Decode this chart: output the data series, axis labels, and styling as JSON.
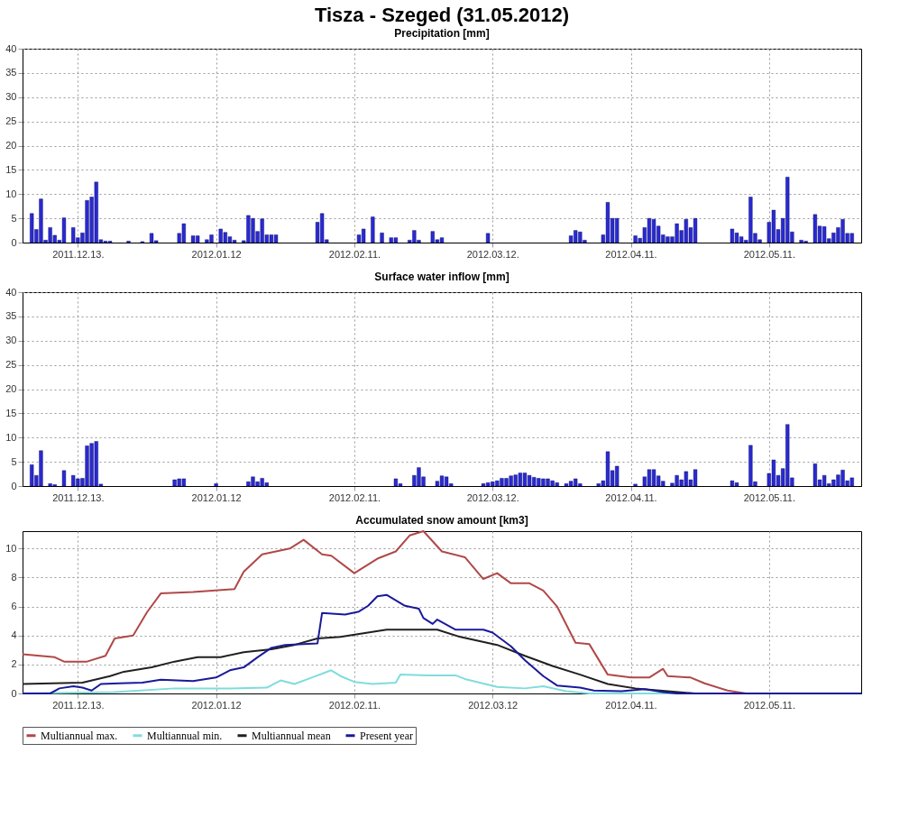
{
  "chart_data": [
    {
      "type": "bar",
      "title": "Tisza - Szeged (31.05.2012)",
      "subtitle": "Precipitation [mm]",
      "color": "#2a2ad0",
      "grid": true,
      "xlim": [
        "2011-12-01",
        "2012-05-31"
      ],
      "ylim": [
        0,
        40
      ],
      "yticks": [
        0,
        5,
        10,
        15,
        20,
        25,
        30,
        35,
        40
      ],
      "xticks": [
        {
          "value": "2011-12-13",
          "label": "2011.12.13."
        },
        {
          "value": "2012-01-12",
          "label": "2012.01.12"
        },
        {
          "value": "2012-02-11",
          "label": "2012.02.11."
        },
        {
          "value": "2012-03-12",
          "label": "2012.03.12."
        },
        {
          "value": "2012-04-11",
          "label": "2012.04.11."
        },
        {
          "value": "2012-05-11",
          "label": "2012.05.11."
        }
      ],
      "x": [
        "2011-12-03",
        "2011-12-04",
        "2011-12-05",
        "2011-12-06",
        "2011-12-07",
        "2011-12-08",
        "2011-12-09",
        "2011-12-10",
        "2011-12-12",
        "2011-12-13",
        "2011-12-14",
        "2011-12-15",
        "2011-12-16",
        "2011-12-17",
        "2011-12-18",
        "2011-12-19",
        "2011-12-20",
        "2011-12-24",
        "2011-12-27",
        "2011-12-29",
        "2011-12-30",
        "2012-01-04",
        "2012-01-05",
        "2012-01-07",
        "2012-01-08",
        "2012-01-10",
        "2012-01-11",
        "2012-01-13",
        "2012-01-14",
        "2012-01-15",
        "2012-01-16",
        "2012-01-18",
        "2012-01-19",
        "2012-01-20",
        "2012-01-21",
        "2012-01-22",
        "2012-01-23",
        "2012-01-24",
        "2012-01-25",
        "2012-02-03",
        "2012-02-04",
        "2012-02-05",
        "2012-02-12",
        "2012-02-13",
        "2012-02-15",
        "2012-02-17",
        "2012-02-19",
        "2012-02-20",
        "2012-02-23",
        "2012-02-24",
        "2012-02-25",
        "2012-02-28",
        "2012-02-29",
        "2012-03-01",
        "2012-03-11",
        "2012-03-29",
        "2012-03-30",
        "2012-03-31",
        "2012-04-01",
        "2012-04-05",
        "2012-04-06",
        "2012-04-07",
        "2012-04-08",
        "2012-04-12",
        "2012-04-13",
        "2012-04-14",
        "2012-04-15",
        "2012-04-16",
        "2012-04-17",
        "2012-04-18",
        "2012-04-19",
        "2012-04-20",
        "2012-04-21",
        "2012-04-22",
        "2012-04-23",
        "2012-04-24",
        "2012-04-25",
        "2012-05-03",
        "2012-05-04",
        "2012-05-05",
        "2012-05-06",
        "2012-05-07",
        "2012-05-08",
        "2012-05-09",
        "2012-05-11",
        "2012-05-12",
        "2012-05-13",
        "2012-05-14",
        "2012-05-15",
        "2012-05-16",
        "2012-05-18",
        "2012-05-19",
        "2012-05-21",
        "2012-05-22",
        "2012-05-23",
        "2012-05-24",
        "2012-05-25",
        "2012-05-26",
        "2012-05-27",
        "2012-05-28",
        "2012-05-29"
      ],
      "values": [
        6,
        2.7,
        9,
        0.5,
        3.1,
        1.5,
        0.5,
        5.1,
        3.1,
        1,
        2,
        8.7,
        9.4,
        12.5,
        0.6,
        0.3,
        0.3,
        0.3,
        0.2,
        1.9,
        0.4,
        1.9,
        3.9,
        1.4,
        1.4,
        0.6,
        1.6,
        2.8,
        2.1,
        1.2,
        0.5,
        0.4,
        5.6,
        5,
        2.3,
        4.9,
        1.6,
        1.6,
        1.6,
        4.2,
        6,
        0.6,
        1.6,
        2.8,
        5.3,
        2,
        1,
        1,
        0.5,
        2.5,
        0.5,
        2.3,
        0.6,
        1,
        1.9,
        1.4,
        2.5,
        2.2,
        0.5,
        1.6,
        8.3,
        5,
        5,
        1.4,
        0.9,
        3.1,
        5,
        4.8,
        3.4,
        1.6,
        1.2,
        1.2,
        3.9,
        2.5,
        4.8,
        3.1,
        5,
        2.8,
        2,
        1.2,
        0.5,
        9.4,
        1.9,
        0.6,
        4.2,
        6.7,
        2.7,
        5,
        13.5,
        2.2,
        0.5,
        0.3,
        5.8,
        3.4,
        3.3,
        0.8,
        2,
        3.1,
        4.8,
        1.9,
        1.9
      ]
    },
    {
      "type": "bar",
      "title": "Surface water inflow [mm]",
      "color": "#2a2ad0",
      "grid": true,
      "xlim": [
        "2011-12-01",
        "2012-05-31"
      ],
      "ylim": [
        0,
        40
      ],
      "yticks": [
        0,
        5,
        10,
        15,
        20,
        25,
        30,
        35,
        40
      ],
      "xticks": [
        {
          "value": "2011-12-13",
          "label": "2011.12.13."
        },
        {
          "value": "2012-01-12",
          "label": "2012.01.12"
        },
        {
          "value": "2012-02-11",
          "label": "2012.02.11."
        },
        {
          "value": "2012-03-12",
          "label": "2012.03.12."
        },
        {
          "value": "2012-04-11",
          "label": "2012.04.11."
        },
        {
          "value": "2012-05-11",
          "label": "2012.05.11."
        }
      ],
      "x": [
        "2011-12-03",
        "2011-12-04",
        "2011-12-05",
        "2011-12-07",
        "2011-12-08",
        "2011-12-10",
        "2011-12-12",
        "2011-12-13",
        "2011-12-14",
        "2011-12-15",
        "2011-12-16",
        "2011-12-17",
        "2011-12-18",
        "2012-01-03",
        "2012-01-04",
        "2012-01-05",
        "2012-01-12",
        "2012-01-19",
        "2012-01-20",
        "2012-01-21",
        "2012-01-22",
        "2012-01-23",
        "2012-02-20",
        "2012-02-21",
        "2012-02-24",
        "2012-02-25",
        "2012-02-26",
        "2012-02-29",
        "2012-03-01",
        "2012-03-02",
        "2012-03-03",
        "2012-03-10",
        "2012-03-11",
        "2012-03-12",
        "2012-03-13",
        "2012-03-14",
        "2012-03-15",
        "2012-03-16",
        "2012-03-17",
        "2012-03-18",
        "2012-03-19",
        "2012-03-20",
        "2012-03-21",
        "2012-03-22",
        "2012-03-23",
        "2012-03-24",
        "2012-03-25",
        "2012-03-26",
        "2012-03-28",
        "2012-03-29",
        "2012-03-30",
        "2012-03-31",
        "2012-04-04",
        "2012-04-05",
        "2012-04-06",
        "2012-04-07",
        "2012-04-08",
        "2012-04-12",
        "2012-04-14",
        "2012-04-15",
        "2012-04-16",
        "2012-04-17",
        "2012-04-18",
        "2012-04-20",
        "2012-04-21",
        "2012-04-22",
        "2012-04-23",
        "2012-04-24",
        "2012-04-25",
        "2012-05-03",
        "2012-05-04",
        "2012-05-07",
        "2012-05-08",
        "2012-05-11",
        "2012-05-12",
        "2012-05-13",
        "2012-05-14",
        "2012-05-15",
        "2012-05-16",
        "2012-05-21",
        "2012-05-22",
        "2012-05-23",
        "2012-05-24",
        "2012-05-25",
        "2012-05-26",
        "2012-05-27",
        "2012-05-28",
        "2012-05-29"
      ],
      "values": [
        4.4,
        2.2,
        7.3,
        0.5,
        0.3,
        3.2,
        2.2,
        1.5,
        1.6,
        8.3,
        8.8,
        9.2,
        0.4,
        1.3,
        1.5,
        1.5,
        0.5,
        0.9,
        1.9,
        0.9,
        1.6,
        0.7,
        1.5,
        0.5,
        2.2,
        3.8,
        1.9,
        1,
        2.1,
        1.9,
        0.5,
        0.5,
        0.7,
        0.9,
        1.1,
        1.6,
        1.6,
        2.1,
        2.3,
        2.7,
        2.7,
        2.2,
        1.8,
        1.6,
        1.5,
        1.5,
        1.1,
        0.7,
        0.5,
        1,
        1.5,
        0.5,
        0.5,
        1.1,
        7.1,
        3.2,
        4.1,
        0.4,
        1.9,
        3.4,
        3.4,
        2.1,
        1,
        0.6,
        2.2,
        1.3,
        3,
        1.3,
        3.4,
        1.1,
        0.7,
        8.4,
        0.9,
        2.6,
        5.4,
        2.2,
        3.6,
        12.7,
        1.7,
        4.6,
        1.3,
        2.2,
        0.5,
        1.3,
        2.3,
        3.3,
        1.1,
        1.7
      ]
    },
    {
      "type": "line",
      "title": "Accumulated snow amount [km3]",
      "grid": true,
      "legend": "bottom",
      "xlim": [
        "2011-12-01",
        "2012-05-31"
      ],
      "ylim": [
        0,
        11.2
      ],
      "yticks": [
        0,
        2,
        4,
        6,
        8,
        10
      ],
      "xticks": [
        {
          "value": "2011-12-13",
          "label": "2011.12.13."
        },
        {
          "value": "2012-01-12",
          "label": "2012.01.12"
        },
        {
          "value": "2012-02-11",
          "label": "2012.02.11."
        },
        {
          "value": "2012-03-12",
          "label": "2012.03.12"
        },
        {
          "value": "2012-04-11",
          "label": "2012.04.11."
        },
        {
          "value": "2012-05-11",
          "label": "2012.05.11."
        }
      ],
      "series": [
        {
          "name": "Multiannual max.",
          "color": "#b04848",
          "x": [
            "2011-12-01",
            "2011-12-08",
            "2011-12-10",
            "2011-12-15",
            "2011-12-19",
            "2011-12-21",
            "2011-12-25",
            "2011-12-28",
            "2011-12-31",
            "2012-01-07",
            "2012-01-16",
            "2012-01-18",
            "2012-01-22",
            "2012-01-28",
            "2012-01-31",
            "2012-02-04",
            "2012-02-06",
            "2012-02-11",
            "2012-02-16",
            "2012-02-20",
            "2012-02-23",
            "2012-02-26",
            "2012-03-01",
            "2012-03-06",
            "2012-03-10",
            "2012-03-13",
            "2012-03-16",
            "2012-03-20",
            "2012-03-23",
            "2012-03-26",
            "2012-03-30",
            "2012-04-02",
            "2012-04-06",
            "2012-04-11",
            "2012-04-15",
            "2012-04-18",
            "2012-04-19",
            "2012-04-24",
            "2012-04-27",
            "2012-05-02",
            "2012-05-06",
            "2012-05-11",
            "2012-05-31"
          ],
          "values": [
            2.7,
            2.5,
            2.2,
            2.2,
            2.6,
            3.8,
            4.0,
            5.6,
            6.9,
            7.0,
            7.2,
            8.4,
            9.6,
            10.0,
            10.6,
            9.6,
            9.5,
            8.3,
            9.3,
            9.8,
            10.9,
            11.2,
            9.8,
            9.4,
            7.9,
            8.3,
            7.6,
            7.6,
            7.1,
            6.0,
            3.5,
            3.4,
            1.3,
            1.1,
            1.1,
            1.7,
            1.2,
            1.1,
            0.7,
            0.2,
            0,
            0,
            0
          ]
        },
        {
          "name": "Multiannual min.",
          "color": "#80dcdc",
          "x": [
            "2011-12-01",
            "2011-12-21",
            "2012-01-03",
            "2012-01-15",
            "2012-01-23",
            "2012-01-26",
            "2012-01-29",
            "2012-02-01",
            "2012-02-06",
            "2012-02-08",
            "2012-02-11",
            "2012-02-15",
            "2012-02-20",
            "2012-02-21",
            "2012-02-27",
            "2012-03-04",
            "2012-03-06",
            "2012-03-13",
            "2012-03-19",
            "2012-03-23",
            "2012-03-28",
            "2012-04-02",
            "2012-05-31"
          ],
          "values": [
            0,
            0.1,
            0.35,
            0.35,
            0.4,
            0.9,
            0.65,
            1.0,
            1.6,
            1.2,
            0.8,
            0.65,
            0.75,
            1.3,
            1.25,
            1.25,
            1.0,
            0.45,
            0.35,
            0.5,
            0.15,
            0,
            0
          ]
        },
        {
          "name": "Multiannual mean",
          "color": "#202020",
          "x": [
            "2011-12-01",
            "2011-12-14",
            "2011-12-20",
            "2011-12-23",
            "2011-12-29",
            "2012-01-03",
            "2012-01-08",
            "2012-01-13",
            "2012-01-18",
            "2012-01-24",
            "2012-01-29",
            "2012-02-03",
            "2012-02-08",
            "2012-02-13",
            "2012-02-18",
            "2012-02-29",
            "2012-03-05",
            "2012-03-13",
            "2012-03-19",
            "2012-03-25",
            "2012-03-31",
            "2012-04-06",
            "2012-04-12",
            "2012-04-19",
            "2012-04-25",
            "2012-05-31"
          ],
          "values": [
            0.65,
            0.75,
            1.2,
            1.5,
            1.8,
            2.2,
            2.5,
            2.5,
            2.85,
            3.05,
            3.35,
            3.8,
            3.9,
            4.15,
            4.4,
            4.4,
            3.9,
            3.35,
            2.6,
            1.9,
            1.3,
            0.65,
            0.35,
            0.15,
            0,
            0
          ]
        },
        {
          "name": "Present year",
          "color": "#1a1a9a",
          "x": [
            "2011-12-01",
            "2011-12-07",
            "2011-12-09",
            "2011-12-12",
            "2011-12-14",
            "2011-12-16",
            "2011-12-18",
            "2011-12-22",
            "2011-12-27",
            "2011-12-31",
            "2012-01-07",
            "2012-01-12",
            "2012-01-15",
            "2012-01-18",
            "2012-01-21",
            "2012-01-24",
            "2012-01-27",
            "2012-02-03",
            "2012-02-04",
            "2012-02-09",
            "2012-02-12",
            "2012-02-14",
            "2012-02-16",
            "2012-02-18",
            "2012-02-22",
            "2012-02-25",
            "2012-02-26",
            "2012-02-28",
            "2012-02-29",
            "2012-03-04",
            "2012-03-10",
            "2012-03-12",
            "2012-03-16",
            "2012-03-19",
            "2012-03-23",
            "2012-03-26",
            "2012-03-31",
            "2012-04-03",
            "2012-04-09",
            "2012-04-14",
            "2012-04-18",
            "2012-04-21",
            "2012-05-31"
          ],
          "values": [
            0,
            0,
            0.35,
            0.5,
            0.4,
            0.2,
            0.65,
            0.7,
            0.75,
            0.95,
            0.85,
            1.1,
            1.6,
            1.8,
            2.5,
            3.15,
            3.35,
            3.45,
            5.55,
            5.45,
            5.65,
            6.05,
            6.7,
            6.8,
            6.05,
            5.85,
            5.2,
            4.8,
            5.1,
            4.4,
            4.4,
            4.2,
            3.25,
            2.3,
            1.2,
            0.55,
            0.4,
            0.2,
            0.15,
            0.3,
            0.1,
            0,
            0
          ]
        }
      ]
    }
  ]
}
